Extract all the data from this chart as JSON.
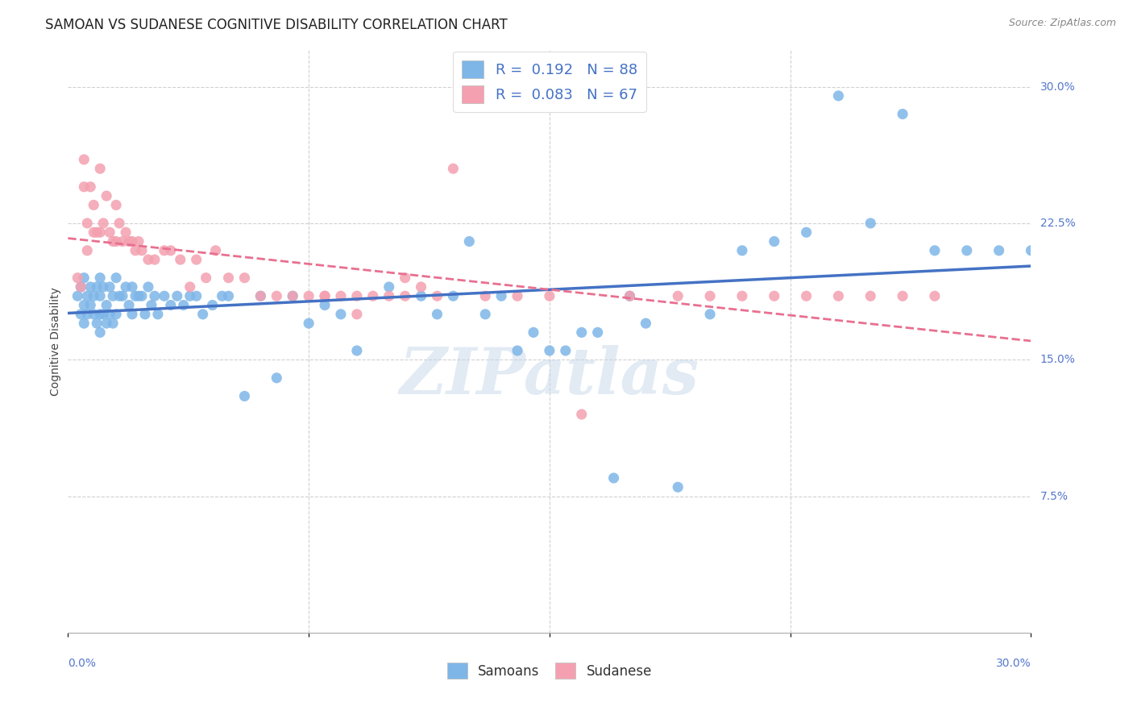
{
  "title": "SAMOAN VS SUDANESE COGNITIVE DISABILITY CORRELATION CHART",
  "source": "Source: ZipAtlas.com",
  "ylabel": "Cognitive Disability",
  "ytick_labels": [
    "7.5%",
    "15.0%",
    "22.5%",
    "30.0%"
  ],
  "ytick_values": [
    0.075,
    0.15,
    0.225,
    0.3
  ],
  "xtick_values": [
    0.075,
    0.15,
    0.225
  ],
  "xlim": [
    0.0,
    0.3
  ],
  "ylim": [
    0.0,
    0.32
  ],
  "watermark": "ZIPatlas",
  "legend_r_samoan": "0.192",
  "legend_n_samoan": "88",
  "legend_r_sudanese": "0.083",
  "legend_n_sudanese": "67",
  "samoan_color": "#7EB6E8",
  "sudanese_color": "#F4A0B0",
  "samoan_line_color": "#4472C4",
  "sudanese_line_color": "#E87090",
  "background_color": "#FFFFFF",
  "title_fontsize": 12,
  "axis_label_fontsize": 10,
  "tick_label_fontsize": 10,
  "watermark_color": "#C0D4E8",
  "watermark_alpha": 0.45,
  "samoan_x": [
    0.003,
    0.004,
    0.004,
    0.005,
    0.005,
    0.005,
    0.006,
    0.006,
    0.007,
    0.007,
    0.008,
    0.008,
    0.009,
    0.009,
    0.01,
    0.01,
    0.01,
    0.01,
    0.011,
    0.011,
    0.012,
    0.012,
    0.013,
    0.013,
    0.014,
    0.014,
    0.015,
    0.015,
    0.016,
    0.017,
    0.018,
    0.019,
    0.02,
    0.02,
    0.021,
    0.022,
    0.023,
    0.024,
    0.025,
    0.026,
    0.027,
    0.028,
    0.03,
    0.032,
    0.034,
    0.036,
    0.038,
    0.04,
    0.042,
    0.045,
    0.048,
    0.05,
    0.055,
    0.06,
    0.065,
    0.07,
    0.075,
    0.08,
    0.085,
    0.09,
    0.1,
    0.11,
    0.12,
    0.13,
    0.14,
    0.15,
    0.16,
    0.17,
    0.18,
    0.19,
    0.2,
    0.21,
    0.22,
    0.23,
    0.24,
    0.25,
    0.26,
    0.27,
    0.28,
    0.29,
    0.3,
    0.175,
    0.165,
    0.155,
    0.145,
    0.135,
    0.125,
    0.115
  ],
  "samoan_y": [
    0.185,
    0.175,
    0.19,
    0.18,
    0.195,
    0.17,
    0.185,
    0.175,
    0.19,
    0.18,
    0.185,
    0.175,
    0.19,
    0.17,
    0.195,
    0.185,
    0.175,
    0.165,
    0.19,
    0.175,
    0.18,
    0.17,
    0.19,
    0.175,
    0.185,
    0.17,
    0.195,
    0.175,
    0.185,
    0.185,
    0.19,
    0.18,
    0.19,
    0.175,
    0.185,
    0.185,
    0.185,
    0.175,
    0.19,
    0.18,
    0.185,
    0.175,
    0.185,
    0.18,
    0.185,
    0.18,
    0.185,
    0.185,
    0.175,
    0.18,
    0.185,
    0.185,
    0.13,
    0.185,
    0.14,
    0.185,
    0.17,
    0.18,
    0.175,
    0.155,
    0.19,
    0.185,
    0.185,
    0.175,
    0.155,
    0.155,
    0.165,
    0.085,
    0.17,
    0.08,
    0.175,
    0.21,
    0.215,
    0.22,
    0.295,
    0.225,
    0.285,
    0.21,
    0.21,
    0.21,
    0.21,
    0.185,
    0.165,
    0.155,
    0.165,
    0.185,
    0.215,
    0.175
  ],
  "sudanese_x": [
    0.003,
    0.004,
    0.005,
    0.005,
    0.006,
    0.006,
    0.007,
    0.008,
    0.008,
    0.009,
    0.01,
    0.01,
    0.011,
    0.012,
    0.013,
    0.014,
    0.015,
    0.015,
    0.016,
    0.017,
    0.018,
    0.019,
    0.02,
    0.021,
    0.022,
    0.023,
    0.025,
    0.027,
    0.03,
    0.032,
    0.035,
    0.038,
    0.04,
    0.043,
    0.046,
    0.05,
    0.055,
    0.06,
    0.065,
    0.07,
    0.075,
    0.08,
    0.09,
    0.1,
    0.105,
    0.11,
    0.12,
    0.13,
    0.14,
    0.15,
    0.16,
    0.175,
    0.19,
    0.2,
    0.21,
    0.22,
    0.23,
    0.24,
    0.25,
    0.26,
    0.27,
    0.105,
    0.115,
    0.09,
    0.08,
    0.085,
    0.095
  ],
  "sudanese_y": [
    0.195,
    0.19,
    0.26,
    0.245,
    0.225,
    0.21,
    0.245,
    0.235,
    0.22,
    0.22,
    0.255,
    0.22,
    0.225,
    0.24,
    0.22,
    0.215,
    0.235,
    0.215,
    0.225,
    0.215,
    0.22,
    0.215,
    0.215,
    0.21,
    0.215,
    0.21,
    0.205,
    0.205,
    0.21,
    0.21,
    0.205,
    0.19,
    0.205,
    0.195,
    0.21,
    0.195,
    0.195,
    0.185,
    0.185,
    0.185,
    0.185,
    0.185,
    0.175,
    0.185,
    0.195,
    0.19,
    0.255,
    0.185,
    0.185,
    0.185,
    0.12,
    0.185,
    0.185,
    0.185,
    0.185,
    0.185,
    0.185,
    0.185,
    0.185,
    0.185,
    0.185,
    0.185,
    0.185,
    0.185,
    0.185,
    0.185,
    0.185
  ]
}
